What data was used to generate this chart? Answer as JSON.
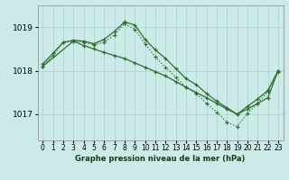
{
  "title": "Graphe pression niveau de la mer (hPa)",
  "background_color": "#cceae8",
  "grid_color": "#b0d4d0",
  "line_color": "#2d6e2d",
  "xlim": [
    -0.5,
    23.5
  ],
  "ylim": [
    1016.4,
    1019.5
  ],
  "yticks": [
    1017,
    1018,
    1019
  ],
  "ytick_labels": [
    "1017",
    "1018",
    "1019"
  ],
  "xticks": [
    0,
    1,
    2,
    3,
    4,
    5,
    6,
    7,
    8,
    9,
    10,
    11,
    12,
    13,
    14,
    15,
    16,
    17,
    18,
    19,
    20,
    21,
    22,
    23
  ],
  "series": [
    {
      "x": [
        0,
        1,
        2,
        3,
        4,
        5,
        6,
        7,
        8,
        9,
        10,
        11,
        12,
        13,
        14,
        15,
        16,
        17,
        18,
        19,
        20,
        21,
        22,
        23
      ],
      "y": [
        1018.15,
        1018.4,
        1018.65,
        1018.7,
        1018.68,
        1018.62,
        1018.72,
        1018.9,
        1019.12,
        1019.05,
        1018.72,
        1018.48,
        1018.28,
        1018.05,
        1017.82,
        1017.68,
        1017.48,
        1017.3,
        1017.15,
        1017.0,
        1017.18,
        1017.35,
        1017.55,
        1018.0
      ],
      "style": "solid"
    },
    {
      "x": [
        0,
        1,
        2,
        3,
        4,
        5,
        6,
        7,
        8,
        9,
        10,
        11,
        12,
        13,
        14,
        15,
        16,
        17,
        18,
        19,
        20,
        21,
        22,
        23
      ],
      "y": [
        1018.1,
        1018.35,
        1018.65,
        1018.68,
        1018.65,
        1018.6,
        1018.65,
        1018.82,
        1019.08,
        1018.95,
        1018.62,
        1018.32,
        1018.08,
        1017.85,
        1017.62,
        1017.48,
        1017.25,
        1017.05,
        1016.82,
        1016.72,
        1017.02,
        1017.25,
        1017.52,
        1017.98
      ],
      "style": "dotted"
    },
    {
      "x": [
        0,
        3,
        4,
        5,
        6,
        7,
        8,
        9,
        10,
        11,
        12,
        13,
        14,
        15,
        16,
        17,
        18,
        19,
        20,
        21,
        22,
        23
      ],
      "y": [
        1018.1,
        1018.68,
        1018.58,
        1018.5,
        1018.42,
        1018.35,
        1018.28,
        1018.18,
        1018.08,
        1017.98,
        1017.88,
        1017.75,
        1017.62,
        1017.5,
        1017.38,
        1017.25,
        1017.12,
        1017.0,
        1017.12,
        1017.25,
        1017.38,
        1018.0
      ],
      "style": "solid"
    }
  ]
}
